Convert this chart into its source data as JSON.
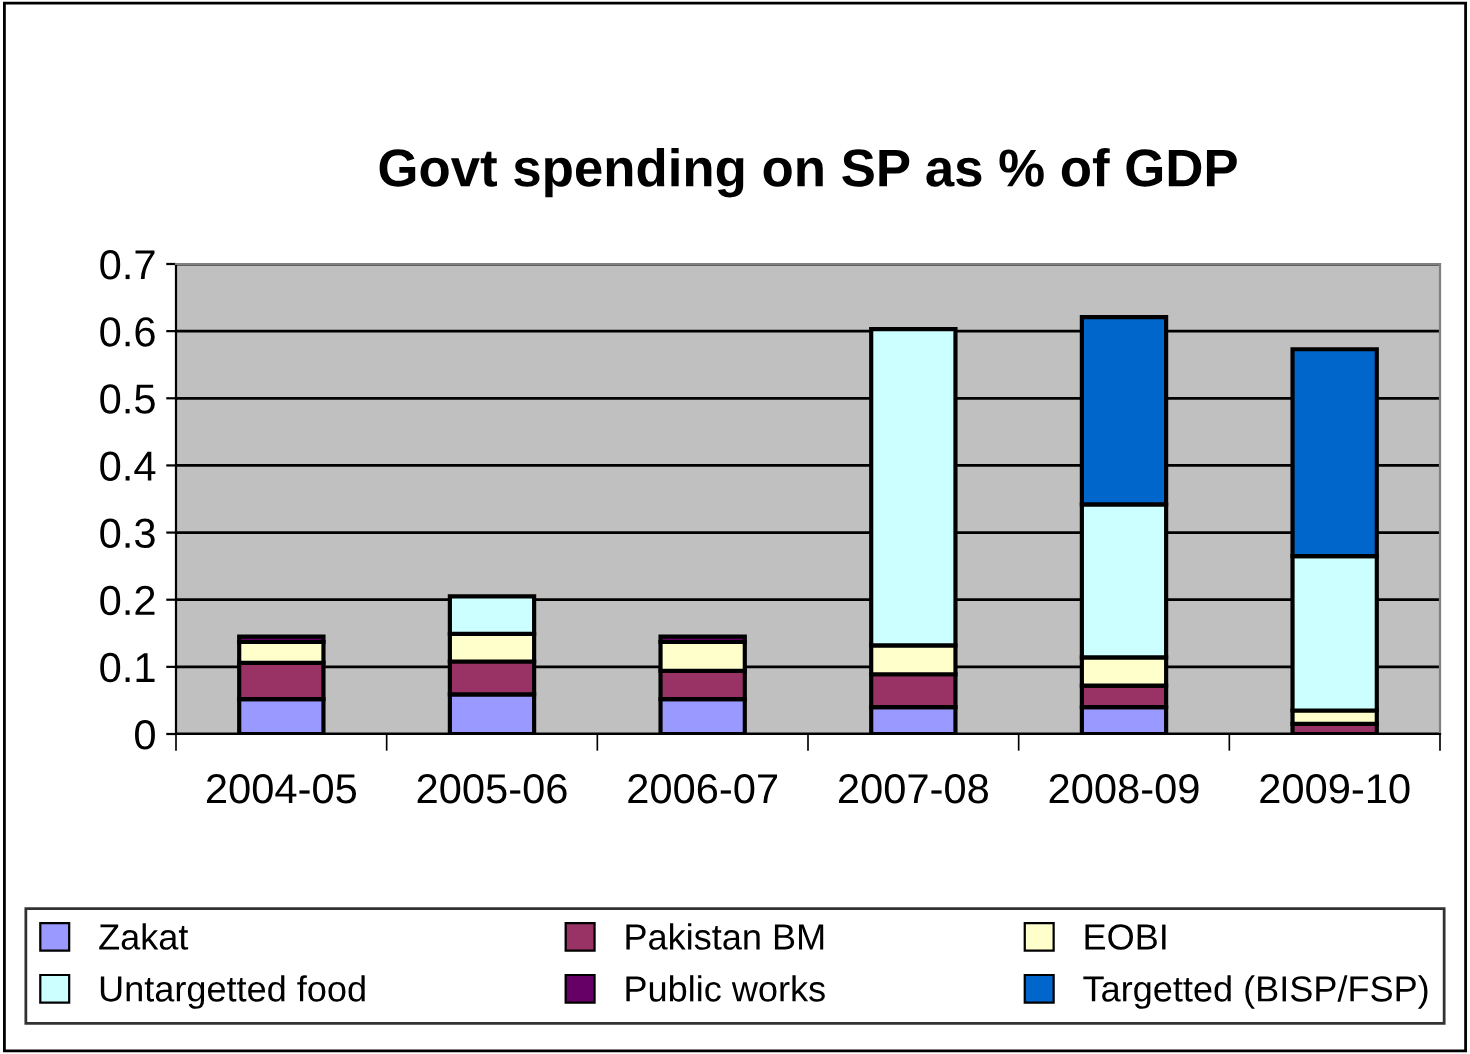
{
  "chart_data": {
    "type": "bar",
    "title": "Govt spending on SP as % of GDP",
    "stacked": true,
    "categories": [
      "2004-05",
      "2005-06",
      "2006-07",
      "2007-08",
      "2008-09",
      "2009-10"
    ],
    "series": [
      {
        "name": "Zakat",
        "color": "#9999ff",
        "values": [
          0.052,
          0.059,
          0.052,
          0.04,
          0.04,
          null
        ]
      },
      {
        "name": "Pakistan BM",
        "color": "#993366",
        "values": [
          0.054,
          0.049,
          0.042,
          0.049,
          0.032,
          0.015
        ]
      },
      {
        "name": "EOBI",
        "color": "#ffffcc",
        "values": [
          0.031,
          0.041,
          0.043,
          0.043,
          0.042,
          0.02
        ]
      },
      {
        "name": "Untargetted food",
        "color": "#ccffff",
        "values": [
          0,
          0.056,
          0,
          0.471,
          0.228,
          0.23
        ]
      },
      {
        "name": "Public works",
        "color": "#660066",
        "values": [
          0.008,
          0,
          0.008,
          0,
          0,
          0
        ]
      },
      {
        "name": "Targetted (BISP/FSP)",
        "color": "#0066cc",
        "values": [
          0,
          0,
          0,
          0,
          0.279,
          0.308
        ]
      }
    ],
    "ylim": [
      0,
      0.7
    ],
    "yticks": [
      0,
      0.1,
      0.2,
      0.3,
      0.4,
      0.5,
      0.6,
      0.7
    ],
    "grid": "y",
    "legend": "bottom"
  }
}
